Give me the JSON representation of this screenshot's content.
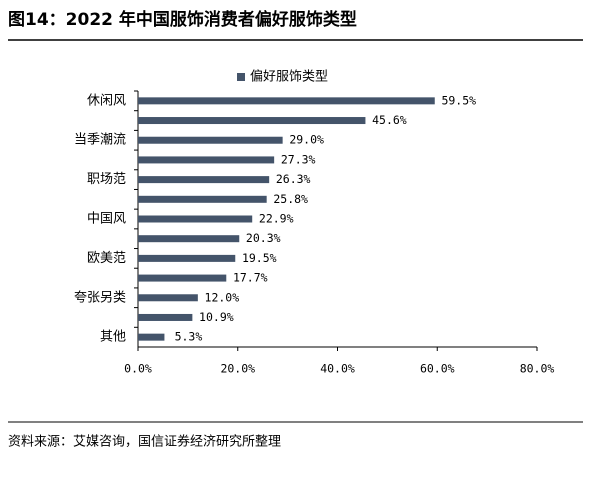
{
  "chart_data": {
    "type": "bar",
    "orientation": "horizontal",
    "title": "图14：2022 年中国服饰消费者偏好服饰类型",
    "source": "资料来源：艾媒咨询，国信证券经济研究所整理",
    "categories": [
      "休闲风",
      null,
      "当季潮流",
      null,
      "职场范",
      null,
      "中国风",
      null,
      "欧美范",
      null,
      "夸张另类",
      null,
      "其他"
    ],
    "series": [
      {
        "name": "偏好服饰类型",
        "color": "#44546a",
        "values": [
          59.5,
          45.6,
          29.0,
          27.3,
          26.3,
          25.8,
          22.9,
          20.3,
          19.5,
          17.7,
          12.0,
          10.9,
          5.3
        ],
        "value_labels": [
          "59.5%",
          "45.6%",
          "29.0%",
          "27.3%",
          "26.3%",
          "25.8%",
          "22.9%",
          "20.3%",
          "19.5%",
          "17.7%",
          "12.0%",
          "10.9%",
          "5.3%"
        ]
      }
    ],
    "xlim": [
      0,
      80
    ],
    "xticks": [
      {
        "value": 0,
        "label": "0.0%"
      },
      {
        "value": 20,
        "label": "20.0%"
      },
      {
        "value": 40,
        "label": "40.0%"
      },
      {
        "value": 60,
        "label": "60.0%"
      },
      {
        "value": 80,
        "label": "80.0%"
      }
    ],
    "legend": "top"
  }
}
